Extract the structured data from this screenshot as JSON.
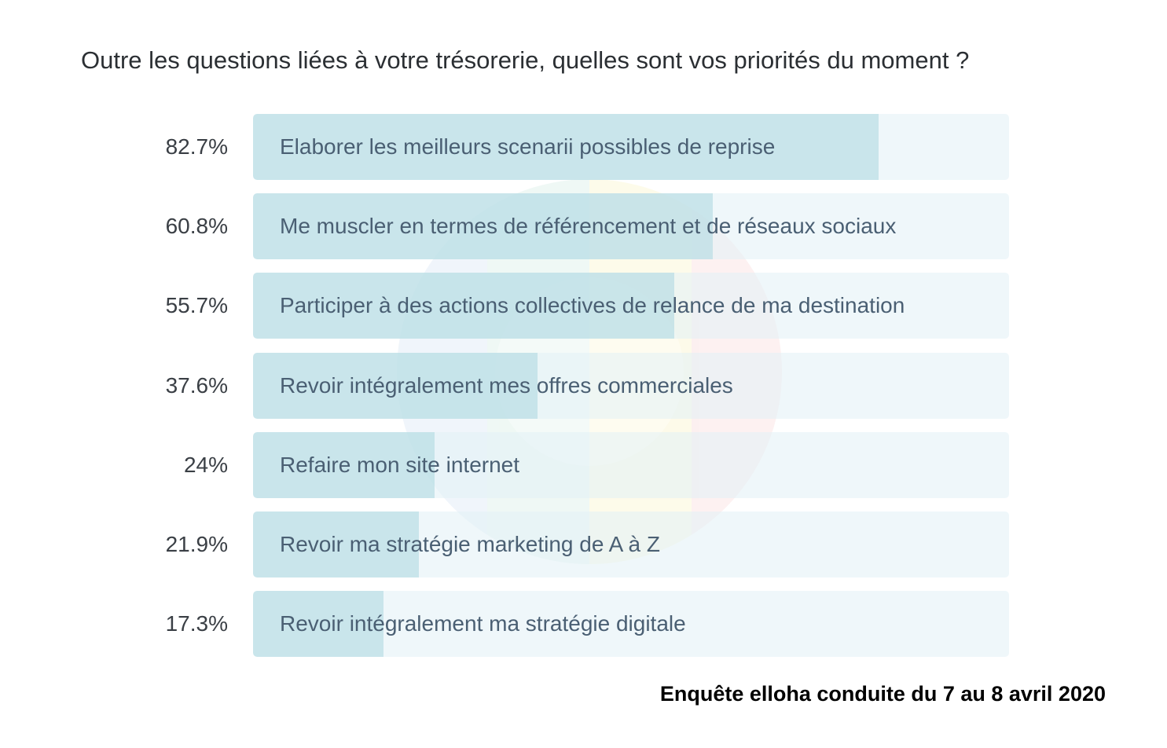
{
  "chart_data": {
    "type": "bar",
    "orientation": "horizontal",
    "title": "Outre les questions liées à votre trésorerie, quelles sont vos priorités du moment ?",
    "categories": [
      "Elaborer les meilleurs scenarii possibles de reprise",
      "Me muscler en termes de référencement et de réseaux sociaux",
      "Participer à des actions collectives de relance de ma destination",
      "Revoir intégralement mes offres commerciales",
      "Refaire mon site internet",
      "Revoir ma stratégie marketing de A à Z",
      "Revoir intégralement ma stratégie digitale"
    ],
    "values": [
      82.7,
      60.8,
      55.7,
      37.6,
      24,
      21.9,
      17.3
    ],
    "value_labels": [
      "82.7%",
      "60.8%",
      "55.7%",
      "37.6%",
      "24%",
      "21.9%",
      "17.3%"
    ],
    "xlim": [
      0,
      100
    ],
    "unit": "%",
    "grid": false,
    "legend": "none",
    "colors": {
      "track": "#e8f4f7",
      "fill": "#bfe0e6",
      "label": "#4a5f73",
      "value": "#3a3f45"
    }
  },
  "footer": {
    "source": "Enquête elloha conduite du 7 au 8 avril 2020"
  },
  "watermark": {
    "icon": "elloha-logo-icon"
  }
}
